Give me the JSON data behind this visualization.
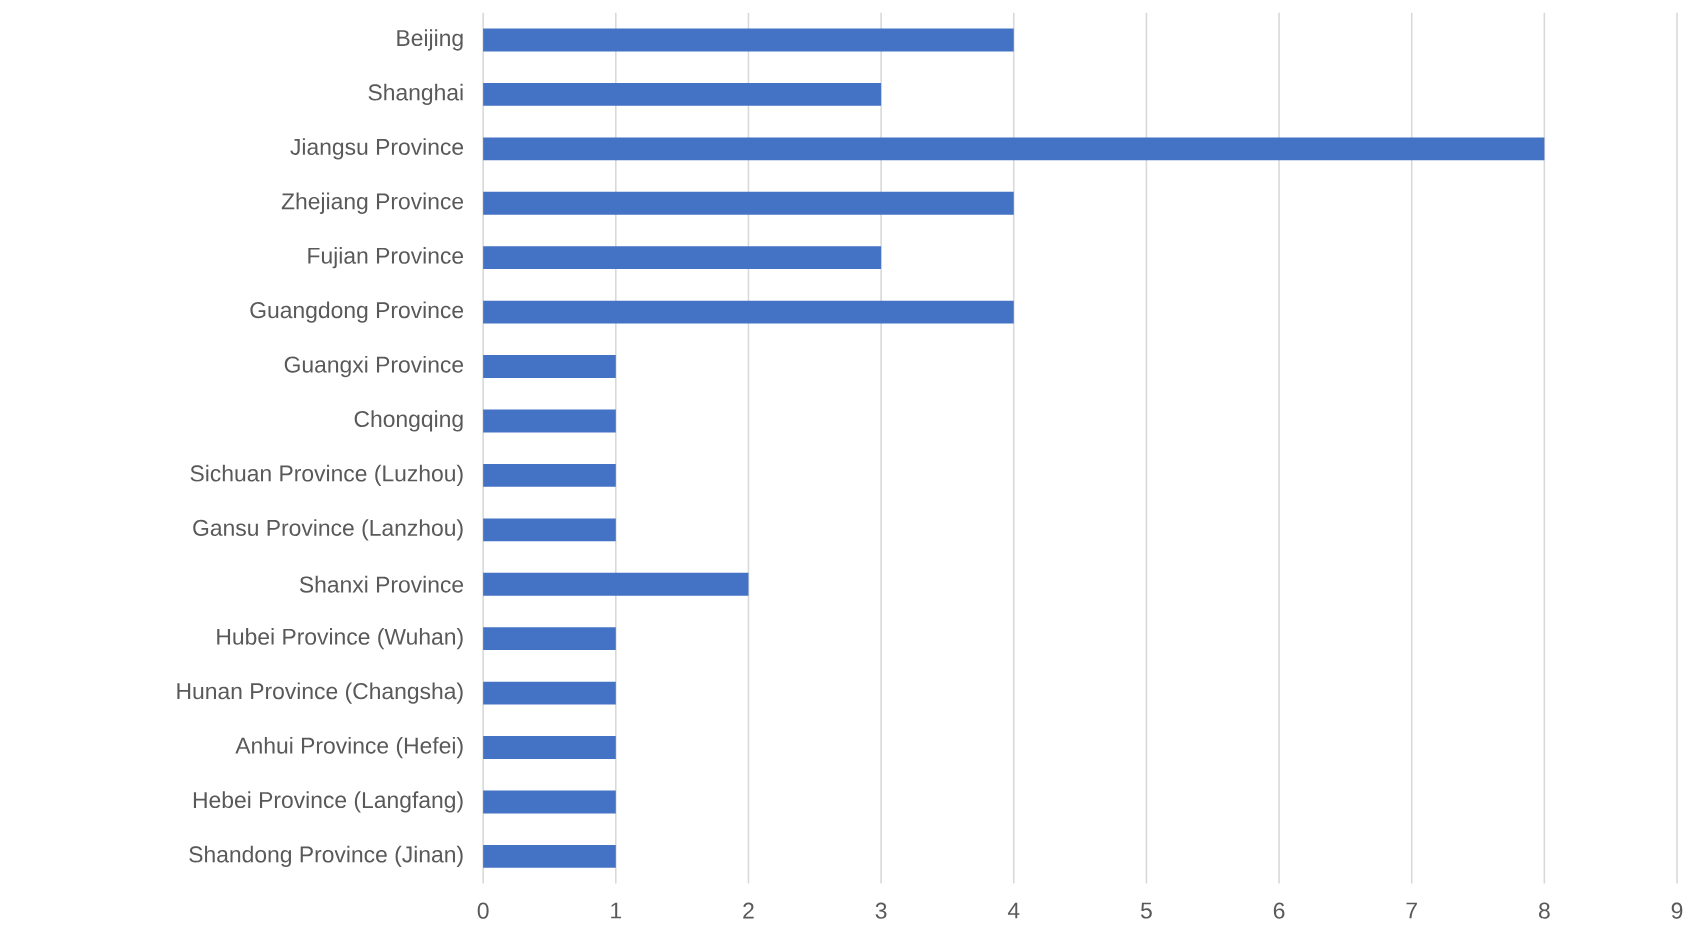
{
  "chart_data": {
    "type": "bar",
    "orientation": "horizontal",
    "categories": [
      "Beijing",
      "Shanghai",
      "Jiangsu Province",
      "Zhejiang Province",
      "Fujian Province",
      "Guangdong Province",
      "Guangxi Province",
      "Chongqing",
      "Sichuan Province (Luzhou)",
      "Gansu Province (Lanzhou)",
      "Shanxi Province",
      "Hubei Province (Wuhan)",
      "Hunan Province (Changsha)",
      "Anhui Province (Hefei)",
      "Hebei Province (Langfang)",
      "Shandong Province (Jinan)"
    ],
    "values": [
      4,
      3,
      8,
      4,
      3,
      4,
      1,
      1,
      1,
      1,
      2,
      1,
      1,
      1,
      1,
      1
    ],
    "color": "#4472c4",
    "xlim": [
      0,
      9
    ],
    "xticks": [
      0,
      1,
      2,
      3,
      4,
      5,
      6,
      7,
      8,
      9
    ],
    "grid": "x"
  }
}
